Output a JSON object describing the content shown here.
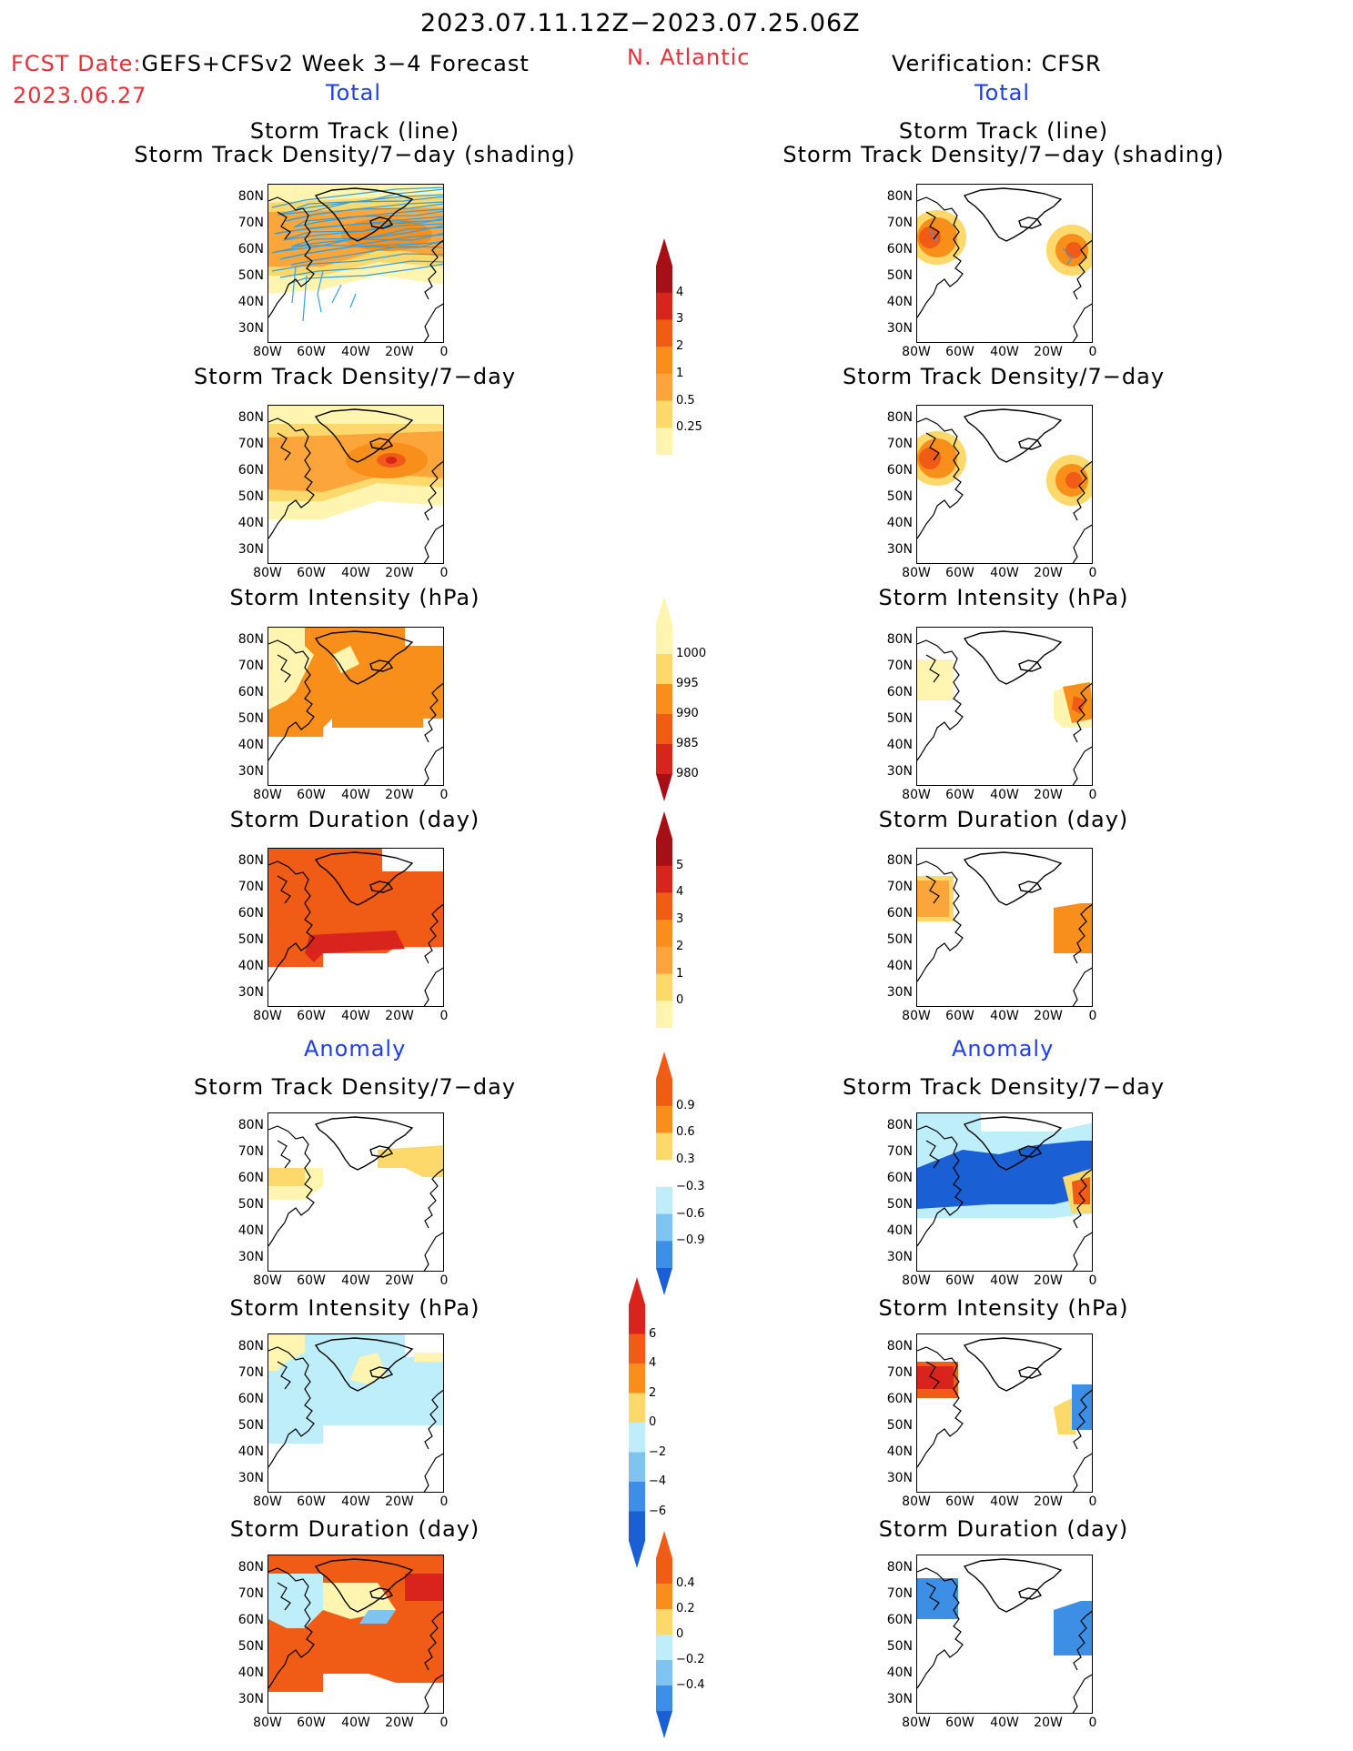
{
  "header": {
    "date_range": "2023.07.11.12Z−2023.07.25.06Z",
    "fcst_label": "FCST Date:",
    "model_title": "GEFS+CFSv2 Week 3−4 Forecast",
    "fcst_date": "2023.06.27",
    "region": "N. Atlantic",
    "verification": "Verification: CFSR",
    "left_section_total": "Total",
    "right_section_total": "Total",
    "left_section_anomaly": "Anomaly",
    "right_section_anomaly": "Anomaly"
  },
  "panel_titles": {
    "track_line": "Storm Track (line)",
    "track_density_shading": "Storm Track Density/7−day (shading)",
    "track_density": "Storm Track Density/7−day",
    "intensity": "Storm Intensity (hPa)",
    "duration": "Storm Duration (day)"
  },
  "axes": {
    "lat_ticks": [
      "80N",
      "70N",
      "60N",
      "50N",
      "40N",
      "30N"
    ],
    "lon_ticks": [
      "80W",
      "60W",
      "40W",
      "20W",
      "0"
    ]
  },
  "colorbars": {
    "density_total": [
      "4",
      "3",
      "2",
      "1",
      "0.5",
      "0.25"
    ],
    "intensity_total": [
      "1000",
      "995",
      "990",
      "985",
      "980"
    ],
    "duration_total": [
      "5",
      "4",
      "3",
      "2",
      "1",
      "0"
    ],
    "density_anom": [
      "0.9",
      "0.6",
      "0.3",
      "−0.3",
      "−0.6",
      "−0.9"
    ],
    "intensity_anom": [
      "6",
      "4",
      "2",
      "0",
      "−2",
      "−4",
      "−6"
    ],
    "duration_anom": [
      "0.4",
      "0.2",
      "0",
      "−0.2",
      "−0.4"
    ]
  },
  "colors": {
    "red_text": "#e8303a",
    "blue_text": "#1f3df0",
    "track_lines": "#33a0e0",
    "pale_yellow": "#fff5b0",
    "yellow": "#fdd86a",
    "orange_light": "#fca53a",
    "orange": "#f98f1b",
    "orange_red": "#f05b16",
    "red": "#d8241c",
    "dark_red": "#a50f15",
    "light_blue": "#bdeefa",
    "blue_mid": "#7fc3f0",
    "blue": "#3d8fe6",
    "dark_blue": "#1a5fd4"
  }
}
